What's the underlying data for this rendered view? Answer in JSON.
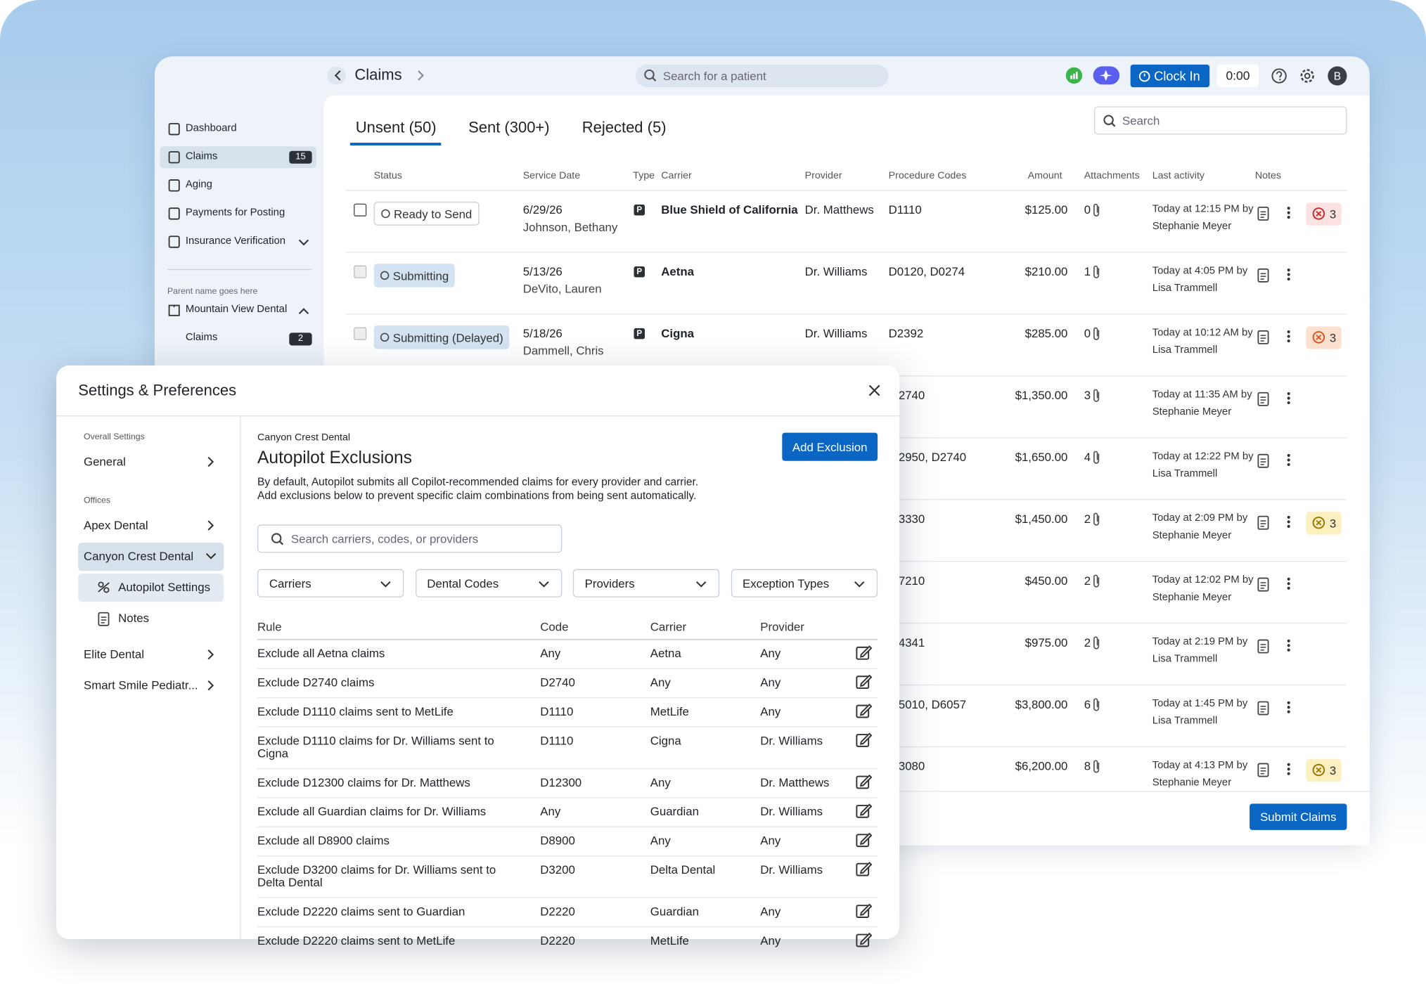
{
  "header": {
    "title": "Claims",
    "search_placeholder": "Search for a patient",
    "clock_in": "Clock In",
    "timer": "0:00",
    "avatar": "B"
  },
  "sidebar": {
    "items": [
      {
        "label": "Dashboard"
      },
      {
        "label": "Claims",
        "badge": 15,
        "selected": true
      },
      {
        "label": "Aging"
      },
      {
        "label": "Payments for Posting"
      },
      {
        "label": "Insurance Verification"
      }
    ],
    "parent_label": "Parent name goes here",
    "office": "Mountain View Dental",
    "office_items": [
      {
        "label": "Claims",
        "badge": 2
      }
    ]
  },
  "tabs": [
    "Unsent (50)",
    "Sent (300+)",
    "Rejected (5)"
  ],
  "search_placeholder": "Search",
  "claims_table": {
    "columns": [
      "Status",
      "Service Date",
      "Type",
      "Carrier",
      "Provider",
      "Procedure Codes",
      "Amount",
      "Attachments",
      "Last activity",
      "Notes"
    ],
    "rows": [
      {
        "status": "Ready to Send",
        "status_kind": "ready",
        "service_date": "6/29/26",
        "patient": "Johnson, Bethany",
        "type": "P",
        "carrier": "Blue Shield of California",
        "provider": "Dr. Matthews",
        "codes": "D1110",
        "amount": "$125.00",
        "attachments": 0,
        "activity": "Today at 12:15 PM by",
        "activity_by": "Stephanie Meyer",
        "badge": {
          "count": 3,
          "kind": "error"
        }
      },
      {
        "status": "Submitting",
        "status_kind": "submitting",
        "service_date": "5/13/26",
        "patient": "DeVito, Lauren",
        "type": "P",
        "carrier": "Aetna",
        "provider": "Dr. Williams",
        "codes": "D0120, D0274",
        "amount": "$210.00",
        "attachments": 1,
        "activity": "Today at 4:05 PM by",
        "activity_by": "Lisa Trammell"
      },
      {
        "status": "Submitting (Delayed)",
        "status_kind": "delayed",
        "service_date": "5/18/26",
        "patient": "Dammell, Chris",
        "type": "P",
        "carrier": "Cigna",
        "provider": "Dr. Williams",
        "codes": "D2392",
        "amount": "$285.00",
        "attachments": 0,
        "activity": "Today at 10:12 AM by",
        "activity_by": "Lisa Trammell",
        "badge": {
          "count": 3,
          "kind": "lock"
        }
      },
      {
        "codes": "2740",
        "amount": "$1,350.00",
        "attachments": 3,
        "activity": "Today at 11:35 AM by",
        "activity_by": "Stephanie Meyer"
      },
      {
        "codes": "2950, D2740",
        "amount": "$1,650.00",
        "attachments": 4,
        "activity": "Today at 12:22 PM by",
        "activity_by": "Lisa Trammell"
      },
      {
        "codes": "3330",
        "amount": "$1,450.00",
        "attachments": 2,
        "activity": "Today at 2:09 PM by",
        "activity_by": "Stephanie Meyer",
        "badge": {
          "count": 3,
          "kind": "shield"
        }
      },
      {
        "codes": "7210",
        "amount": "$450.00",
        "attachments": 2,
        "activity": "Today at 12:02 PM by",
        "activity_by": "Stephanie Meyer"
      },
      {
        "codes": "4341",
        "amount": "$975.00",
        "attachments": 2,
        "activity": "Today at 2:19 PM by",
        "activity_by": "Lisa Trammell"
      },
      {
        "codes": "5010, D6057",
        "amount": "$3,800.00",
        "attachments": 6,
        "activity": "Today at 1:45 PM by",
        "activity_by": "Lisa Trammell"
      },
      {
        "codes": "3080",
        "amount": "$6,200.00",
        "attachments": 8,
        "activity": "Today at 4:13 PM by",
        "activity_by": "Stephanie Meyer",
        "badge": {
          "count": 3,
          "kind": "warning"
        }
      }
    ]
  },
  "submit": "Submit Claims",
  "modal": {
    "title": "Settings & Preferences",
    "nav": {
      "overall_label": "Overall Settings",
      "general": "General",
      "offices_label": "Offices",
      "offices": [
        {
          "label": "Apex Dental"
        },
        {
          "label": "Canyon Crest Dental",
          "selected": true,
          "children": [
            {
              "label": "Autopilot Settings",
              "selected": true
            },
            {
              "label": "Notes"
            }
          ]
        },
        {
          "label": "Elite Dental"
        },
        {
          "label": "Smart Smile Pediatr..."
        }
      ]
    },
    "office": "Canyon Crest Dental",
    "heading": "Autopilot Exclusions",
    "add_button": "Add Exclusion",
    "description": [
      "By default, Autopilot submits all Copilot-recommended claims for every provider and carrier.",
      "Add exclusions below to prevent specific claim combinations from being sent automatically."
    ],
    "search_placeholder": "Search carriers, codes, or providers",
    "filters": [
      "Carriers",
      "Dental Codes",
      "Providers",
      "Exception Types"
    ],
    "columns": [
      "Rule",
      "Code",
      "Carrier",
      "Provider"
    ],
    "rows": [
      [
        "Exclude all Aetna claims",
        "Any",
        "Aetna",
        "Any"
      ],
      [
        "Exclude D2740 claims",
        "D2740",
        "Any",
        "Any"
      ],
      [
        "Exclude D1110 claims sent to MetLife",
        "D1110",
        "MetLife",
        "Any"
      ],
      [
        "Exclude D1110 claims for Dr. Williams sent to Cigna",
        "D1110",
        "Cigna",
        "Dr. Williams"
      ],
      [
        "Exclude D12300 claims for Dr. Matthews",
        "D12300",
        "Any",
        "Dr. Matthews"
      ],
      [
        "Exclude all Guardian claims for Dr. Williams",
        "Any",
        "Guardian",
        "Dr. Williams"
      ],
      [
        "Exclude all D8900 claims",
        "D8900",
        "Any",
        "Any"
      ],
      [
        "Exclude D3200 claims for Dr. Williams sent to Delta Dental",
        "D3200",
        "Delta Dental",
        "Dr. Williams"
      ],
      [
        "Exclude D2220 claims sent to Guardian",
        "D2220",
        "Guardian",
        "Any"
      ],
      [
        "Exclude D2220 claims sent to MetLife",
        "D2220",
        "MetLife",
        "Any"
      ]
    ]
  }
}
